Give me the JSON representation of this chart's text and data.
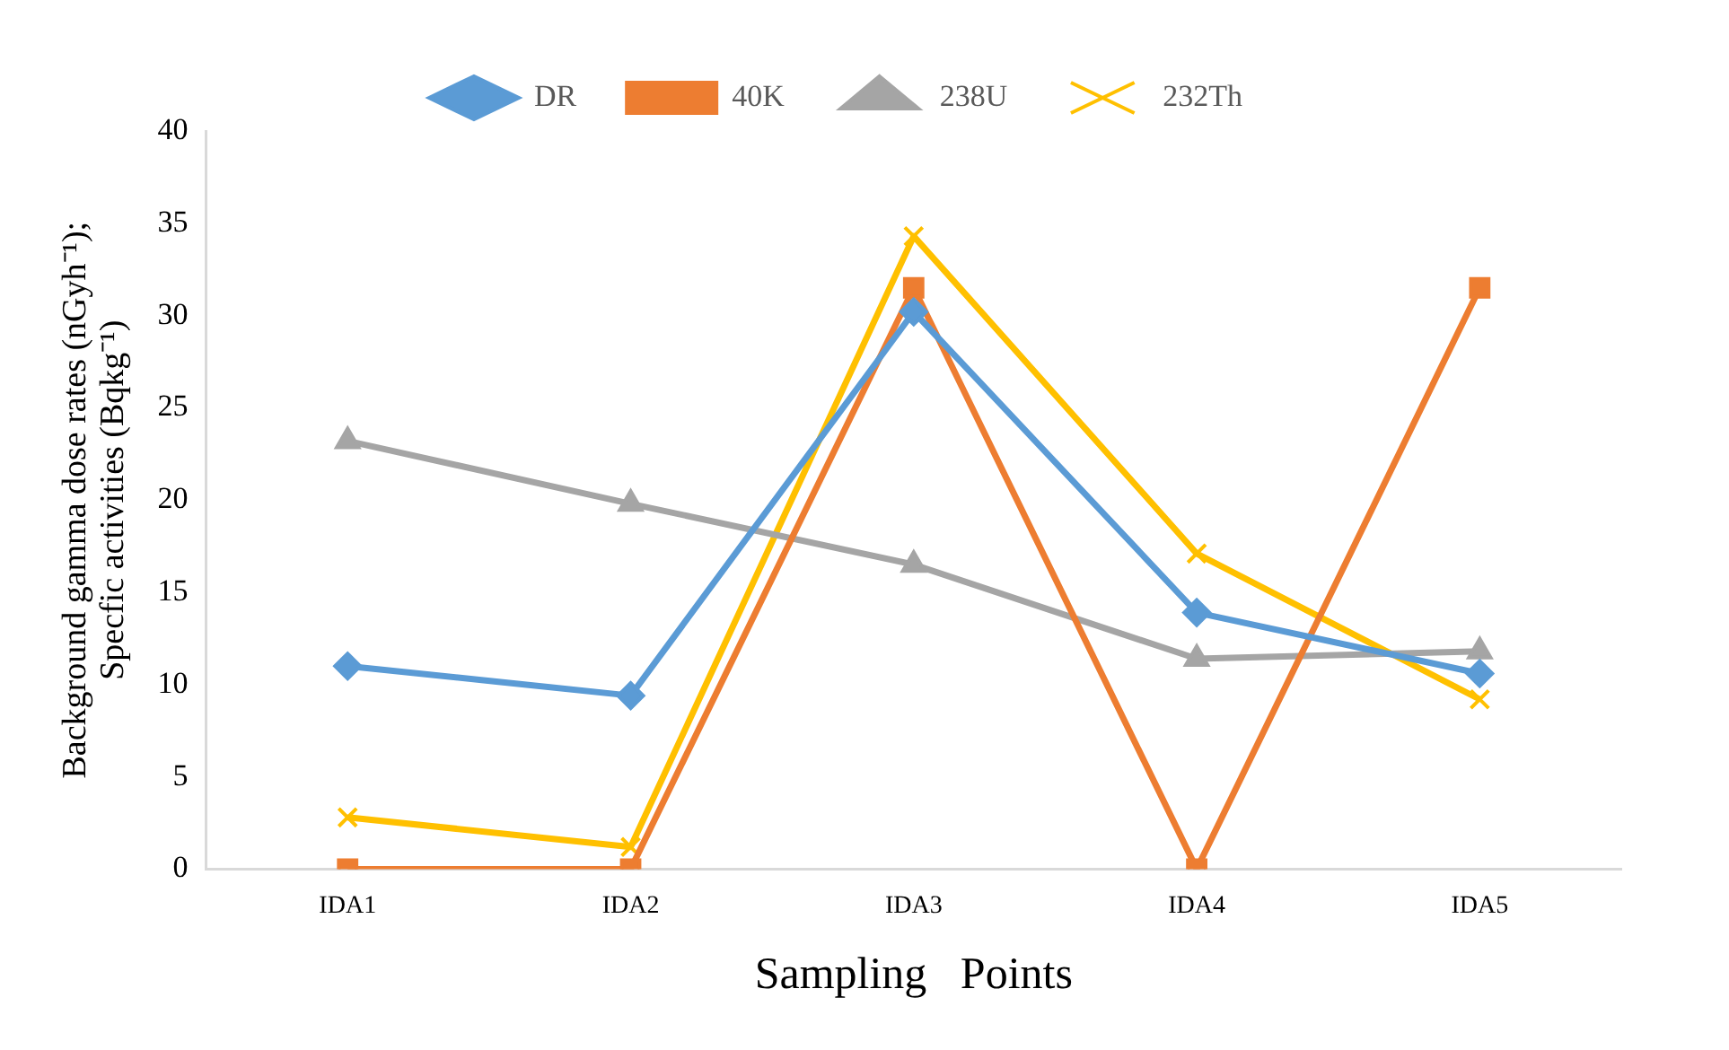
{
  "chart_data": {
    "type": "line",
    "xlabel": "Sampling   Points",
    "ylabel": "Background gamma dose rates (nGyh⁻¹); Specfic activities (Bqkg⁻¹)",
    "categories": [
      "IDA1",
      "IDA2",
      "IDA3",
      "IDA4",
      "IDA5"
    ],
    "series": [
      {
        "name": "DR",
        "color": "#5b9bd5",
        "marker": "diamond",
        "values": [
          11.0,
          9.4,
          30.2,
          13.9,
          10.6
        ]
      },
      {
        "name": "40K",
        "color": "#ed7d31",
        "marker": "square",
        "values": [
          0,
          0,
          31.5,
          0,
          31.5
        ]
      },
      {
        "name": "238U",
        "color": "#a5a5a5",
        "marker": "triangle",
        "values": [
          23.2,
          19.8,
          16.5,
          11.4,
          11.8
        ]
      },
      {
        "name": "232Th",
        "color": "#ffc000",
        "marker": "cross",
        "values": [
          2.8,
          1.2,
          34.3,
          17.1,
          9.2
        ]
      }
    ],
    "ylim": [
      0,
      40
    ],
    "yticks": [
      0,
      5,
      10,
      15,
      20,
      25,
      30,
      35,
      40
    ],
    "grid": false,
    "legend": "top",
    "line_style": "solid"
  }
}
